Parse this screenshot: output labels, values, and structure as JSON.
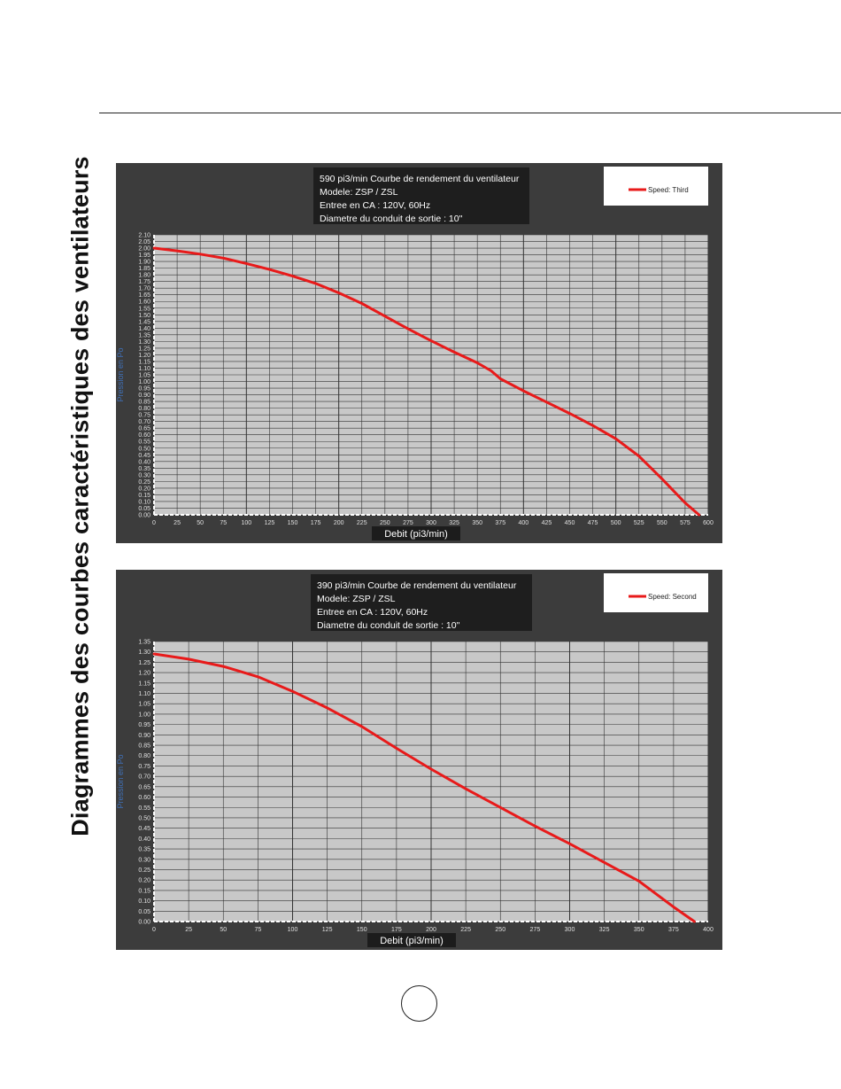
{
  "page": {
    "side_title": "Diagrammes des courbes caractéristiques des ventilateurs"
  },
  "chart_data": [
    {
      "type": "line",
      "info_lines": [
        "590 pi3/min Courbe de rendement du ventilateur",
        "Modele: ZSP / ZSL",
        "Entree en CA : 120V, 60Hz",
        "Diametre du conduit de sortie : 10\""
      ],
      "xlabel": "Debit (pi3/min)",
      "ylabel": "Pression en Po",
      "xlim": [
        0,
        600
      ],
      "ylim": [
        0,
        2.1
      ],
      "x_ticks": [
        0,
        25,
        50,
        75,
        100,
        125,
        150,
        175,
        200,
        225,
        250,
        275,
        300,
        325,
        350,
        375,
        400,
        425,
        450,
        475,
        500,
        525,
        550,
        575,
        600
      ],
      "y_ticks": [
        0,
        0.05,
        0.1,
        0.15,
        0.2,
        0.25,
        0.3,
        0.35,
        0.4,
        0.45,
        0.5,
        0.55,
        0.6,
        0.65,
        0.7,
        0.75,
        0.8,
        0.85,
        0.9,
        0.95,
        1.0,
        1.05,
        1.1,
        1.15,
        1.2,
        1.25,
        1.3,
        1.35,
        1.4,
        1.45,
        1.5,
        1.55,
        1.6,
        1.65,
        1.7,
        1.75,
        1.8,
        1.85,
        1.9,
        1.95,
        2.0,
        2.05,
        2.1
      ],
      "y_decimals": 2,
      "grid": true,
      "legend_position": "top-right",
      "series": [
        {
          "name": "Speed: Third",
          "color": "#e81a1a",
          "x": [
            0,
            25,
            50,
            75,
            100,
            125,
            150,
            175,
            200,
            225,
            250,
            275,
            300,
            325,
            350,
            365,
            375,
            400,
            425,
            450,
            475,
            500,
            525,
            550,
            575,
            590
          ],
          "y": [
            2.0,
            1.98,
            1.955,
            1.925,
            1.885,
            1.84,
            1.79,
            1.735,
            1.665,
            1.585,
            1.49,
            1.395,
            1.305,
            1.22,
            1.14,
            1.08,
            1.02,
            0.93,
            0.845,
            0.76,
            0.67,
            0.57,
            0.44,
            0.27,
            0.09,
            0.0
          ]
        }
      ]
    },
    {
      "type": "line",
      "info_lines": [
        "390 pi3/min Courbe de rendement du ventilateur",
        "Modele: ZSP / ZSL",
        "Entree en CA : 120V, 60Hz",
        "Diametre du conduit de sortie : 10\""
      ],
      "xlabel": "Debit (pi3/min)",
      "ylabel": "Pression en Po",
      "xlim": [
        0,
        400
      ],
      "ylim": [
        0,
        1.35
      ],
      "x_ticks": [
        0,
        25,
        50,
        75,
        100,
        125,
        150,
        175,
        200,
        225,
        250,
        275,
        300,
        325,
        350,
        375,
        400
      ],
      "y_ticks": [
        0,
        0.05,
        0.1,
        0.15,
        0.2,
        0.25,
        0.3,
        0.35,
        0.4,
        0.45,
        0.5,
        0.55,
        0.6,
        0.65,
        0.7,
        0.75,
        0.8,
        0.85,
        0.9,
        0.95,
        1.0,
        1.05,
        1.1,
        1.15,
        1.2,
        1.25,
        1.3,
        1.35
      ],
      "y_decimals": 2,
      "grid": true,
      "legend_position": "top-right",
      "series": [
        {
          "name": "Speed: Second",
          "color": "#e81a1a",
          "x": [
            0,
            25,
            50,
            75,
            100,
            125,
            150,
            175,
            200,
            225,
            250,
            275,
            300,
            325,
            350,
            375,
            390
          ],
          "y": [
            1.29,
            1.265,
            1.23,
            1.18,
            1.11,
            1.03,
            0.94,
            0.835,
            0.735,
            0.64,
            0.55,
            0.46,
            0.375,
            0.285,
            0.195,
            0.07,
            0.0
          ]
        }
      ]
    }
  ]
}
